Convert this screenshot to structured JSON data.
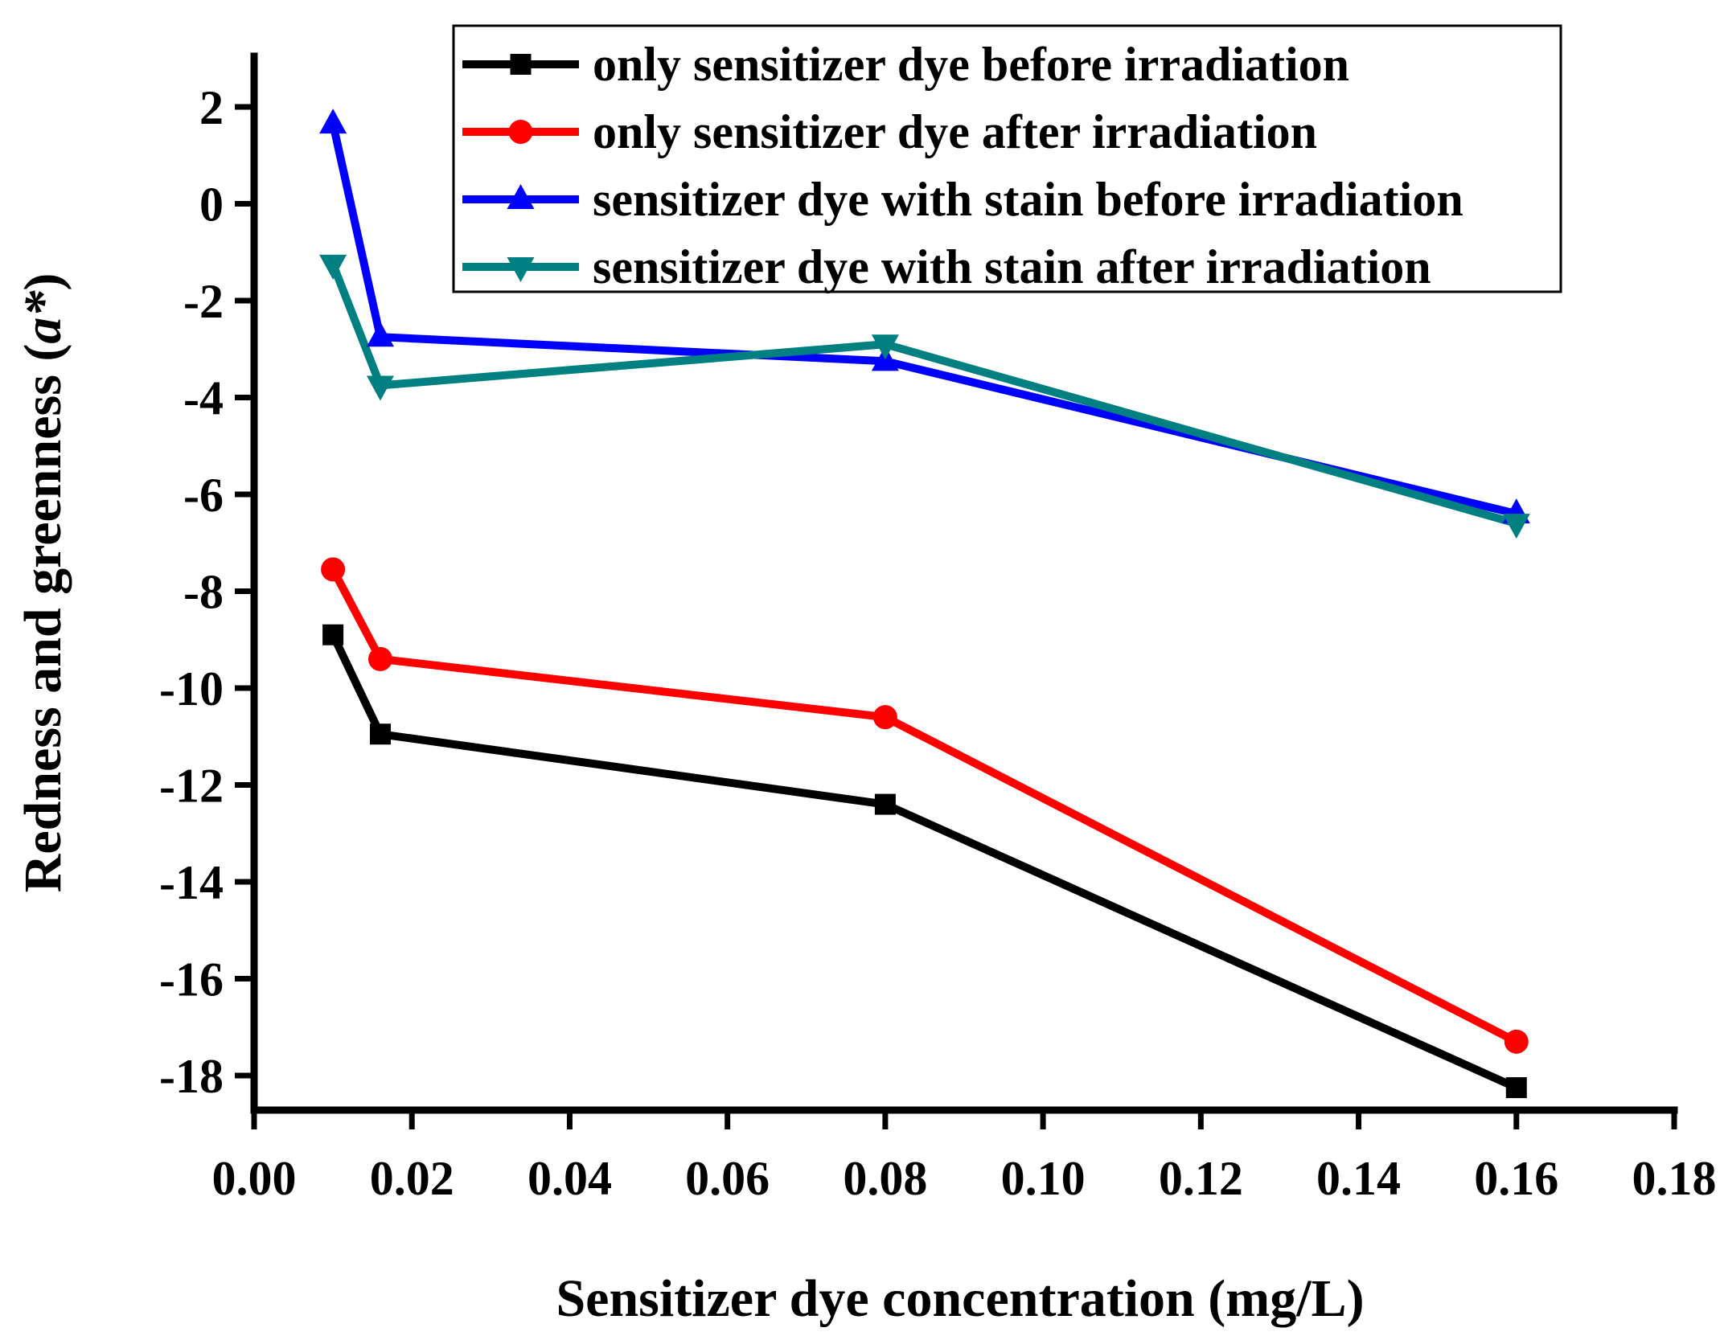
{
  "chart_data": {
    "type": "line",
    "title": "",
    "xlabel": "Sensitizer dye concentration (mg/L)",
    "ylabel_main": "Redness and greenness (",
    "ylabel_italic": "a*",
    "ylabel_end": ")",
    "xlim": [
      0.0,
      0.18
    ],
    "ylim": [
      -19,
      3
    ],
    "x_ticks": [
      {
        "value": 0.0,
        "label": "0.00"
      },
      {
        "value": 0.02,
        "label": "0.02"
      },
      {
        "value": 0.04,
        "label": "0.04"
      },
      {
        "value": 0.06,
        "label": "0.06"
      },
      {
        "value": 0.08,
        "label": "0.08"
      },
      {
        "value": 0.1,
        "label": "0.10"
      },
      {
        "value": 0.12,
        "label": "0.12"
      },
      {
        "value": 0.14,
        "label": "0.14"
      },
      {
        "value": 0.16,
        "label": "0.16"
      },
      {
        "value": 0.18,
        "label": "0.18"
      }
    ],
    "y_ticks": [
      {
        "value": 2,
        "label": "2"
      },
      {
        "value": 0,
        "label": "0"
      },
      {
        "value": -2,
        "label": "-2"
      },
      {
        "value": -4,
        "label": "-4"
      },
      {
        "value": -6,
        "label": "-6"
      },
      {
        "value": -8,
        "label": "-8"
      },
      {
        "value": -10,
        "label": "-10"
      },
      {
        "value": -12,
        "label": "-12"
      },
      {
        "value": -14,
        "label": "-14"
      },
      {
        "value": -16,
        "label": "-16"
      },
      {
        "value": -18,
        "label": "-18"
      }
    ],
    "grid": false,
    "legend_position": "top-right",
    "series": [
      {
        "name": "only sensitizer dye before irradiation",
        "color": "#000000",
        "marker": "square",
        "x": [
          0.01,
          0.016,
          0.08,
          0.16
        ],
        "y": [
          -8.9,
          -10.95,
          -12.4,
          -18.25
        ]
      },
      {
        "name": "only sensitizer dye after irradiation",
        "color": "#ff0000",
        "marker": "circle",
        "x": [
          0.01,
          0.016,
          0.08,
          0.16
        ],
        "y": [
          -7.55,
          -9.4,
          -10.6,
          -17.3
        ]
      },
      {
        "name": "sensitizer dye with stain before irradiation",
        "color": "#0000ff",
        "marker": "triangle-up",
        "x": [
          0.01,
          0.016,
          0.08,
          0.16
        ],
        "y": [
          1.65,
          -2.75,
          -3.25,
          -6.4
        ]
      },
      {
        "name": "sensitizer dye with stain after irradiation",
        "color": "#008080",
        "marker": "triangle-down",
        "x": [
          0.01,
          0.016,
          0.08,
          0.16
        ],
        "y": [
          -1.25,
          -3.75,
          -2.9,
          -6.6
        ]
      }
    ]
  }
}
